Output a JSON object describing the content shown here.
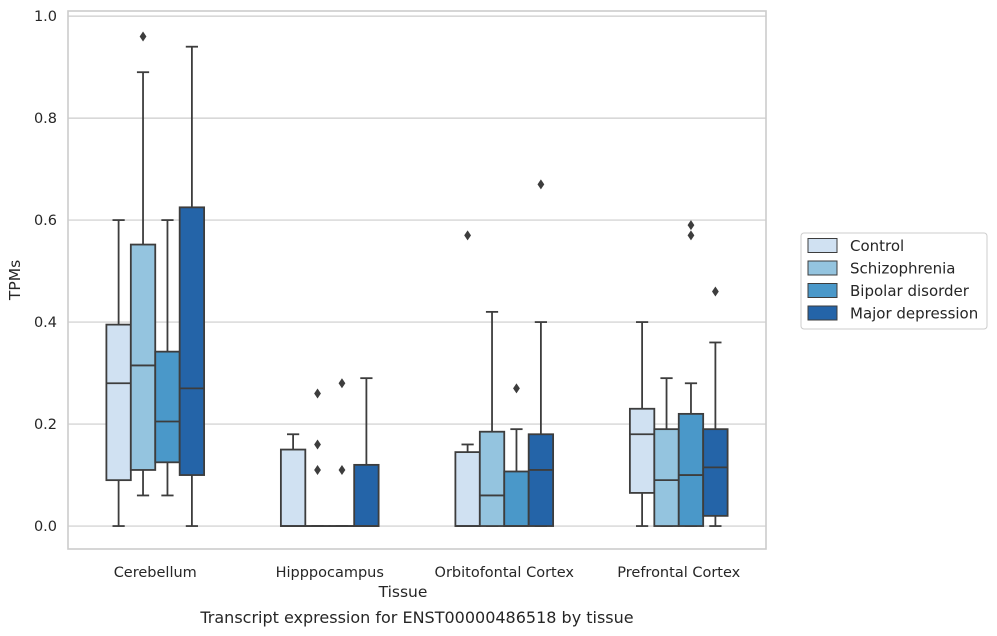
{
  "caption": "Transcript expression for ENST00000486518 by tissue",
  "chart_data": {
    "type": "box",
    "xlabel": "Tissue",
    "ylabel": "TPMs",
    "ylim": [
      -0.045,
      1.01
    ],
    "yticks": [
      "0.0",
      "0.2",
      "0.4",
      "0.6",
      "0.8",
      "1.0"
    ],
    "ytick_values": [
      0,
      0.2,
      0.4,
      0.6,
      0.8,
      1.0
    ],
    "grid": "horizontal",
    "legend_position": "right, outside",
    "categories": [
      "Cerebellum",
      "Hipppocampus",
      "Orbitofontal Cortex",
      "Prefrontal Cortex"
    ],
    "series": [
      {
        "name": "Control",
        "color": "#d0e1f2",
        "boxes": [
          {
            "q1": 0.09,
            "median": 0.28,
            "q3": 0.395,
            "whisker_low": 0.0,
            "whisker_high": 0.6,
            "outliers": []
          },
          {
            "q1": 0.0,
            "median": 0.0,
            "q3": 0.15,
            "whisker_low": 0.0,
            "whisker_high": 0.18,
            "outliers": []
          },
          {
            "q1": 0.0,
            "median": 0.0,
            "q3": 0.145,
            "whisker_low": 0.0,
            "whisker_high": 0.16,
            "outliers": [
              0.57
            ]
          },
          {
            "q1": 0.065,
            "median": 0.18,
            "q3": 0.23,
            "whisker_low": 0.0,
            "whisker_high": 0.4,
            "outliers": []
          }
        ]
      },
      {
        "name": "Schizophrenia",
        "color": "#94c4df",
        "boxes": [
          {
            "q1": 0.11,
            "median": 0.315,
            "q3": 0.552,
            "whisker_low": 0.06,
            "whisker_high": 0.89,
            "outliers": [
              0.96
            ]
          },
          {
            "q1": 0.0,
            "median": 0.0,
            "q3": 0.0,
            "whisker_low": 0.0,
            "whisker_high": 0.0,
            "outliers": [
              0.26,
              0.16,
              0.11
            ]
          },
          {
            "q1": 0.0,
            "median": 0.06,
            "q3": 0.185,
            "whisker_low": 0.0,
            "whisker_high": 0.42,
            "outliers": []
          },
          {
            "q1": 0.0,
            "median": 0.09,
            "q3": 0.19,
            "whisker_low": 0.0,
            "whisker_high": 0.29,
            "outliers": []
          }
        ]
      },
      {
        "name": "Bipolar disorder",
        "color": "#4a98c9",
        "boxes": [
          {
            "q1": 0.125,
            "median": 0.205,
            "q3": 0.342,
            "whisker_low": 0.06,
            "whisker_high": 0.6,
            "outliers": []
          },
          {
            "q1": 0.0,
            "median": 0.0,
            "q3": 0.0,
            "whisker_low": 0.0,
            "whisker_high": 0.0,
            "outliers": [
              0.28,
              0.11
            ]
          },
          {
            "q1": 0.0,
            "median": 0.0,
            "q3": 0.107,
            "whisker_low": 0.0,
            "whisker_high": 0.19,
            "outliers": [
              0.27
            ]
          },
          {
            "q1": 0.0,
            "median": 0.1,
            "q3": 0.22,
            "whisker_low": 0.0,
            "whisker_high": 0.28,
            "outliers": [
              0.59,
              0.57
            ]
          }
        ]
      },
      {
        "name": "Major depression",
        "color": "#2464a8",
        "boxes": [
          {
            "q1": 0.1,
            "median": 0.27,
            "q3": 0.625,
            "whisker_low": 0.0,
            "whisker_high": 0.94,
            "outliers": []
          },
          {
            "q1": 0.0,
            "median": 0.0,
            "q3": 0.12,
            "whisker_low": 0.0,
            "whisker_high": 0.29,
            "outliers": []
          },
          {
            "q1": 0.0,
            "median": 0.11,
            "q3": 0.18,
            "whisker_low": 0.0,
            "whisker_high": 0.4,
            "outliers": [
              0.67
            ]
          },
          {
            "q1": 0.02,
            "median": 0.115,
            "q3": 0.19,
            "whisker_low": 0.0,
            "whisker_high": 0.36,
            "outliers": [
              0.46
            ]
          }
        ]
      }
    ]
  }
}
